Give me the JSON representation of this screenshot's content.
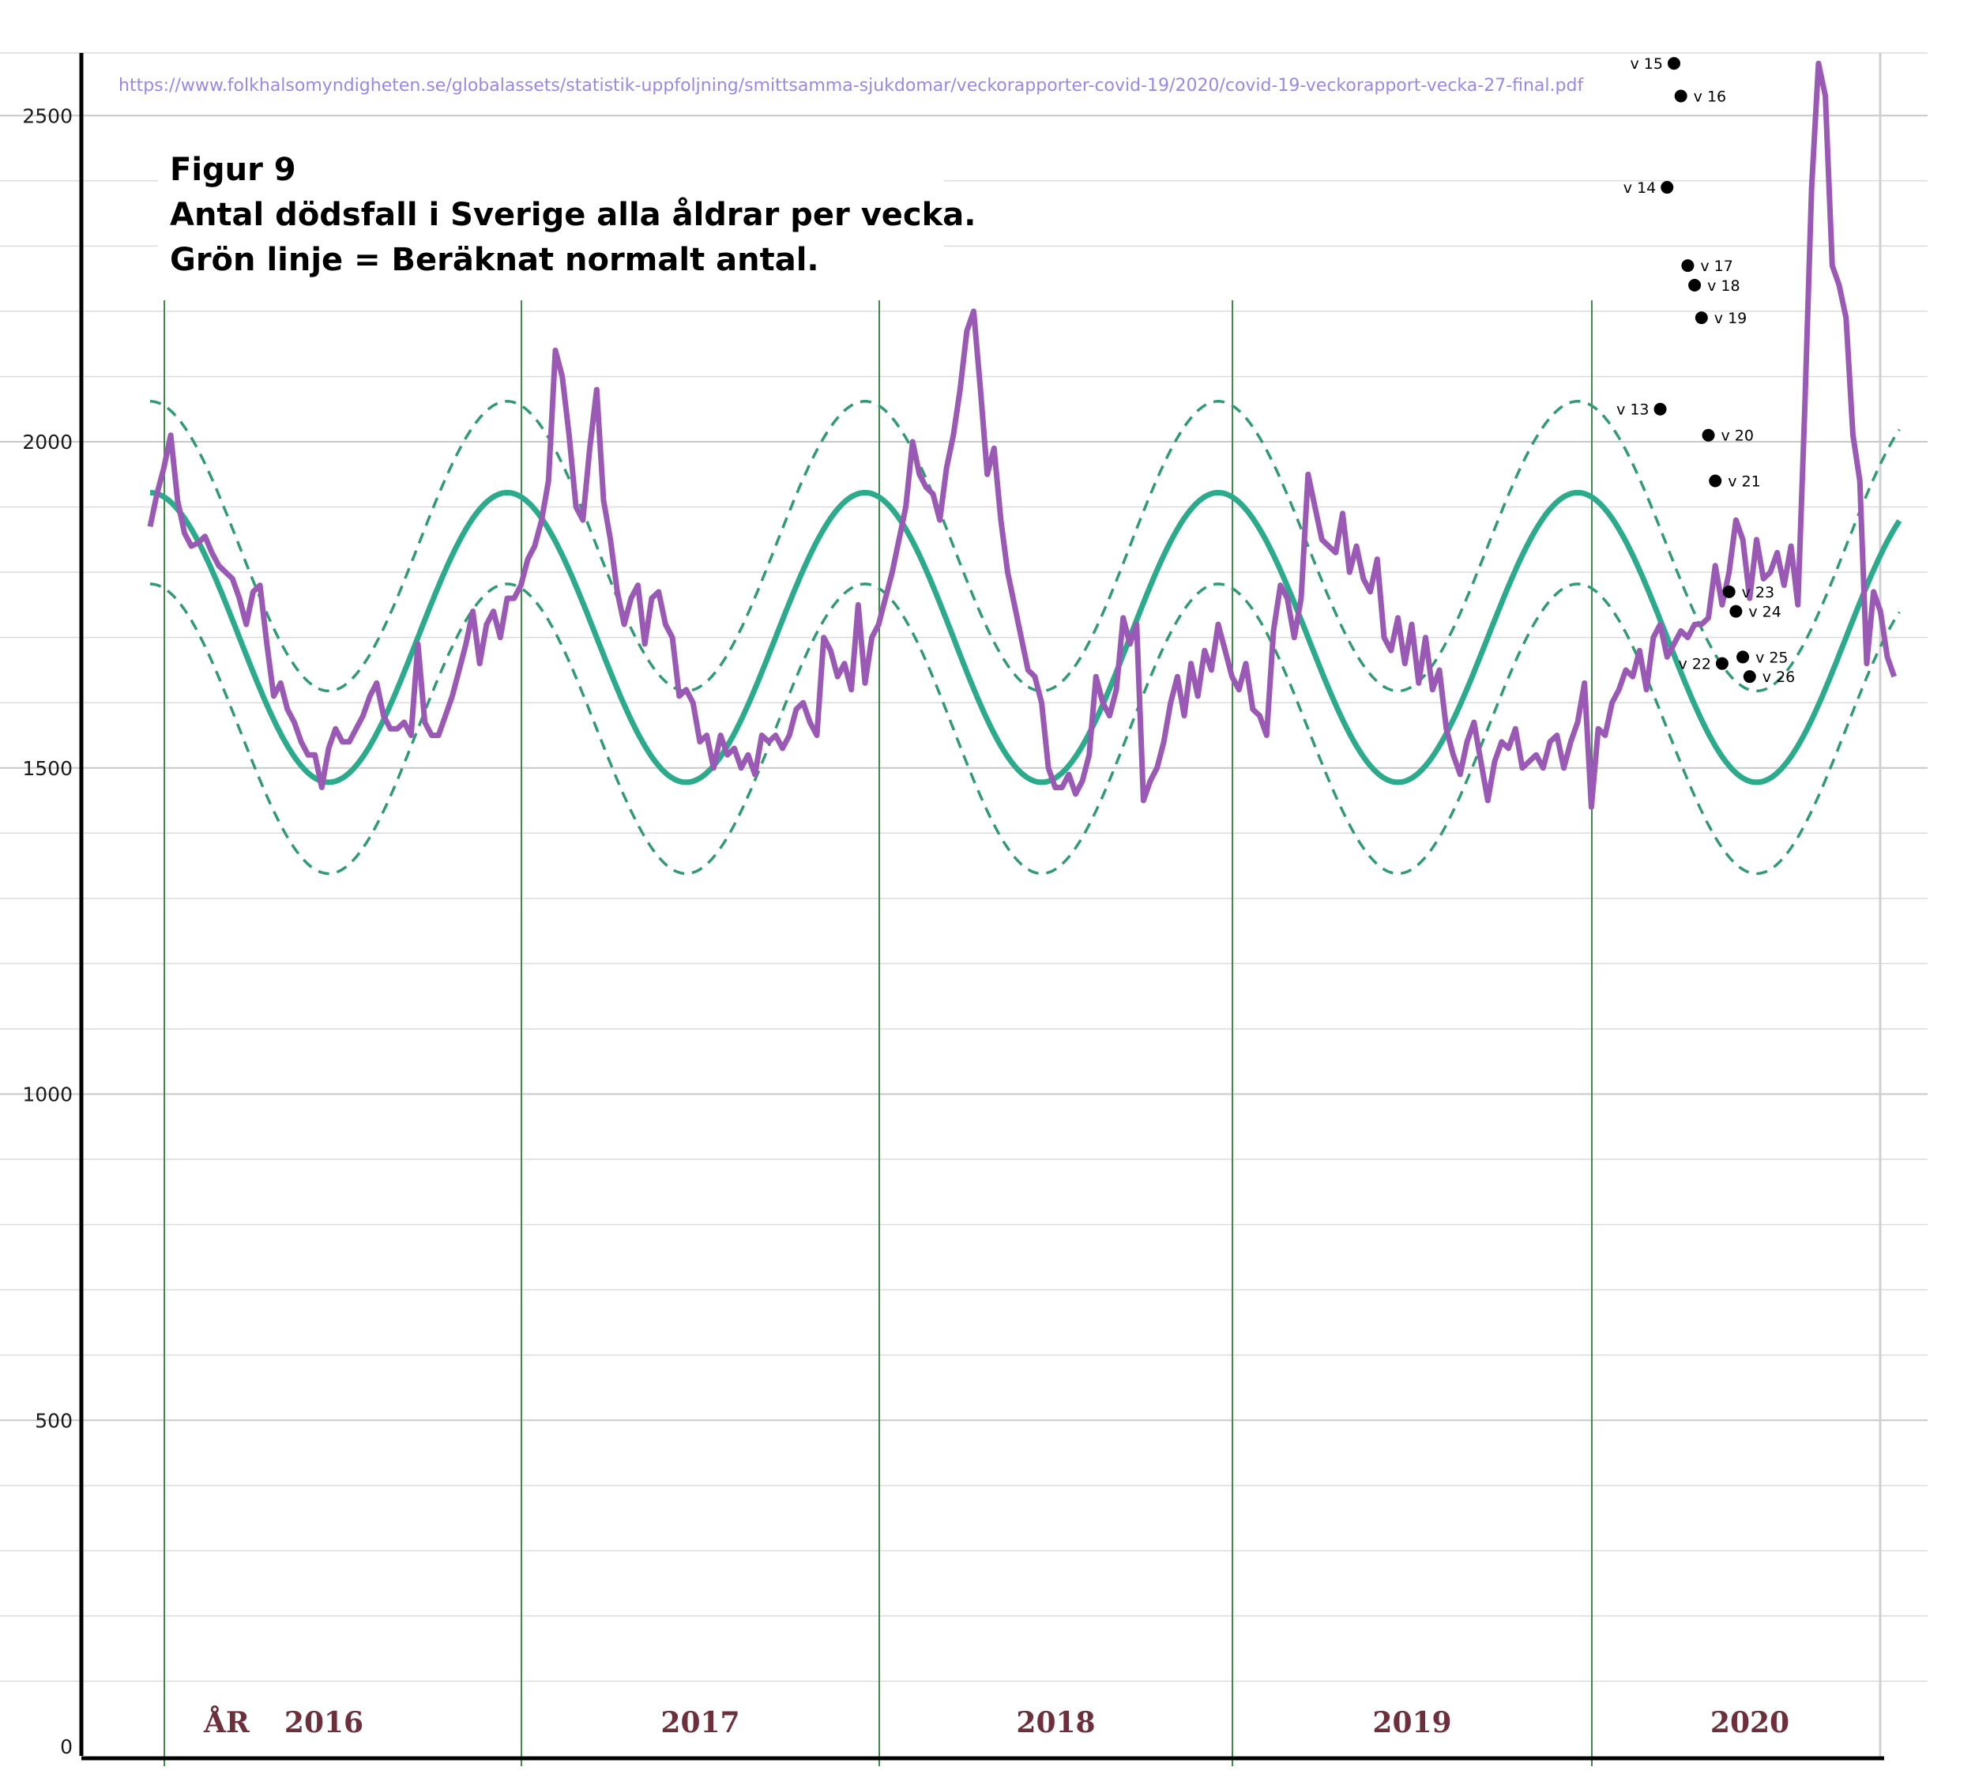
{
  "chart_data": {
    "type": "line",
    "title_lines": [
      "Figur 9",
      "Antal dödsfall i Sverige alla åldrar per vecka.",
      "Grön linje = Beräknat normalt antal."
    ],
    "source_url": "https://www.folkhalsomyndigheten.se/globalassets/statistik-uppfoljning/smittsamma-sjukdomar/veckorapporter-covid-19/2020/covid-19-veckorapport-vecka-27-final.pdf",
    "ylim": [
      0,
      2600
    ],
    "y_ticks": [
      0,
      500,
      1000,
      1500,
      2000,
      2500
    ],
    "year_axis_prefix": "ÅR",
    "years": [
      "2016",
      "2017",
      "2018",
      "2019",
      "2020"
    ],
    "grid": true,
    "colors": {
      "observed": "#9b59b6",
      "expected": "#2baa8c",
      "band": "#2f9a74",
      "year_lines": "#3f8a4a",
      "year_text": "#6e2f3c",
      "marker": "#000000"
    },
    "series": [
      {
        "style": "purple",
        "values": [
          1870,
          1920,
          1960,
          2010,
          1910,
          1860,
          1840,
          1845,
          1855,
          1830,
          1810,
          1800,
          1790,
          1760,
          1720,
          1770,
          1780,
          1690,
          1610,
          1630,
          1590,
          1570,
          1540,
          1520,
          1520,
          1470,
          1530,
          1560,
          1540,
          1540,
          1560,
          1580,
          1610,
          1630,
          1580,
          1560,
          1560,
          1570,
          1550,
          1690,
          1570,
          1550,
          1550,
          1580,
          1610,
          1650,
          1690,
          1740,
          1660,
          1720,
          1740,
          1700,
          1760,
          1760,
          1780,
          1820,
          1840,
          1880,
          1940,
          2140,
          2100,
          2010,
          1900,
          1880,
          1990,
          2080,
          1910,
          1850,
          1770,
          1720,
          1760,
          1780,
          1690,
          1760,
          1770,
          1720,
          1700,
          1610,
          1620,
          1600,
          1540,
          1550,
          1500,
          1550,
          1520,
          1530,
          1500,
          1520,
          1490,
          1550,
          1540,
          1550,
          1530,
          1550,
          1590,
          1600,
          1570,
          1550,
          1700,
          1680,
          1640,
          1660,
          1620,
          1750,
          1630,
          1700,
          1720,
          1760,
          1800,
          1850,
          1900,
          2000,
          1950,
          1930,
          1920,
          1880,
          1960,
          2010,
          2080,
          2170,
          2200,
          2080,
          1950,
          1990,
          1880,
          1800,
          1750,
          1700,
          1650,
          1640,
          1600,
          1500,
          1470,
          1470,
          1490,
          1460,
          1480,
          1520,
          1640,
          1600,
          1580,
          1620,
          1730,
          1690,
          1720,
          1450,
          1480,
          1500,
          1540,
          1600,
          1640,
          1580,
          1660,
          1610,
          1680,
          1650,
          1720,
          1680,
          1640,
          1620,
          1660,
          1590,
          1580,
          1550,
          1710,
          1780,
          1760,
          1700,
          1760,
          1950,
          1900,
          1850,
          1840,
          1830,
          1890,
          1800,
          1840,
          1790,
          1770,
          1820,
          1700,
          1680,
          1730,
          1660,
          1720,
          1630,
          1700,
          1620,
          1650,
          1560,
          1520,
          1490,
          1540,
          1570,
          1510,
          1450,
          1510,
          1540,
          1530,
          1560,
          1500,
          1510,
          1520,
          1500,
          1540,
          1550,
          1500,
          1540,
          1570,
          1630,
          1440,
          1560,
          1550,
          1600,
          1620,
          1650,
          1640,
          1680,
          1620,
          1700,
          1720,
          1670,
          1690,
          1710,
          1700,
          1720,
          1720,
          1730,
          1810,
          1750,
          1800,
          1880,
          1850,
          1760,
          1850,
          1790,
          1800,
          1830,
          1780,
          1840,
          1750,
          2050,
          2390,
          2580,
          2530,
          2270,
          2240,
          2190,
          2010,
          1940,
          1660,
          1770,
          1740,
          1670,
          1640
        ]
      },
      {
        "style": "green-solid"
      },
      {
        "style": "green-dashed-upper"
      },
      {
        "style": "green-dashed-lower"
      }
    ],
    "week_markers": [
      {
        "label": "v 13",
        "value": 2050
      },
      {
        "label": "v 14",
        "value": 2390
      },
      {
        "label": "v 15",
        "value": 2580
      },
      {
        "label": "v 16",
        "value": 2530
      },
      {
        "label": "v 17",
        "value": 2270
      },
      {
        "label": "v 18",
        "value": 2240
      },
      {
        "label": "v 19",
        "value": 2190
      },
      {
        "label": "v 20",
        "value": 2010
      },
      {
        "label": "v 21",
        "value": 1940
      },
      {
        "label": "v 22",
        "value": 1660
      },
      {
        "label": "v 23",
        "value": 1770
      },
      {
        "label": "v 24",
        "value": 1740
      },
      {
        "label": "v 25",
        "value": 1670
      },
      {
        "label": "v 26",
        "value": 1640
      }
    ]
  }
}
